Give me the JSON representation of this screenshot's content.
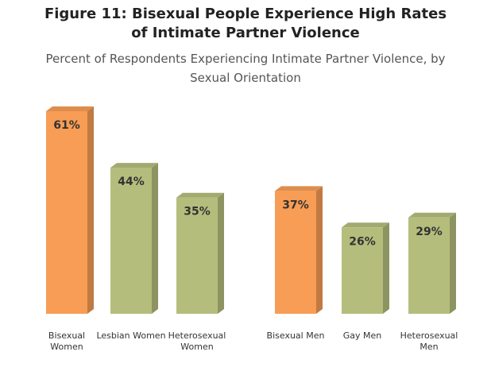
{
  "chart_data": {
    "type": "bar",
    "title": "Figure 11: Bisexual People Experience High Rates of Intimate Partner Violence",
    "subtitle": "Percent of Respondents Experiencing Intimate Partner Violence, by Sexual Orientation",
    "categories": [
      "Bisexual Women",
      "Lesbian Women",
      "Heterosexual Women",
      "Bisexual Men",
      "Gay Men",
      "Heterosexual Men"
    ],
    "values": [
      61,
      44,
      35,
      37,
      26,
      29
    ],
    "value_labels": [
      "61%",
      "44%",
      "35%",
      "37%",
      "26%",
      "29%"
    ],
    "colors": [
      "#f79d55",
      "#b5bd7c",
      "#b5bd7c",
      "#f79d55",
      "#b5bd7c",
      "#b5bd7c"
    ]
  }
}
